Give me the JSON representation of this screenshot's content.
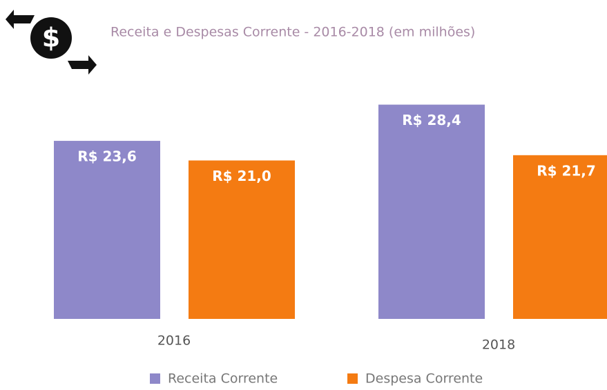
{
  "chart_data": {
    "type": "bar",
    "title": "Receita e Despesas Corrente - 2016-2018 (em milhões)",
    "categories": [
      "2016",
      "2018"
    ],
    "series": [
      {
        "name": "Receita Corrente",
        "color": "#8e88c9",
        "values": [
          23.6,
          28.4
        ],
        "value_labels": [
          "R$ 23,6",
          "R$ 28,4"
        ]
      },
      {
        "name": "Despesa Corrente",
        "color": "#f47b12",
        "values": [
          21.0,
          21.7
        ],
        "value_labels": [
          "R$ 21,0",
          "R$ 21,7"
        ]
      }
    ],
    "legend": "bottom"
  }
}
